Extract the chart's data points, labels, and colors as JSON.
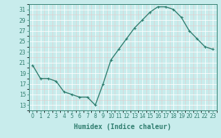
{
  "x": [
    0,
    1,
    2,
    3,
    4,
    5,
    6,
    7,
    8,
    9,
    10,
    11,
    12,
    13,
    14,
    15,
    16,
    17,
    18,
    19,
    20,
    21,
    22,
    23
  ],
  "y": [
    20.5,
    18,
    18,
    17.5,
    15.5,
    15,
    14.5,
    14.5,
    13,
    17,
    21.5,
    23.5,
    25.5,
    27.5,
    29,
    30.5,
    31.5,
    31.5,
    31,
    29.5,
    27,
    25.5,
    24,
    23.5
  ],
  "line_color": "#2e7d6e",
  "marker": "+",
  "marker_size": 3,
  "bg_color": "#c8ecec",
  "grid_color_major": "#ffffff",
  "grid_color_minor": "#e8c8c8",
  "tick_color": "#2e7d6e",
  "xlabel": "Humidex (Indice chaleur)",
  "xlabel_fontsize": 7,
  "xlim": [
    -0.5,
    23.5
  ],
  "ylim": [
    12,
    32
  ],
  "yticks": [
    13,
    15,
    17,
    19,
    21,
    23,
    25,
    27,
    29,
    31
  ],
  "xticks": [
    0,
    1,
    2,
    3,
    4,
    5,
    6,
    7,
    8,
    9,
    10,
    11,
    12,
    13,
    14,
    15,
    16,
    17,
    18,
    19,
    20,
    21,
    22,
    23
  ],
  "tick_fontsize": 5.5,
  "line_width": 1.0
}
